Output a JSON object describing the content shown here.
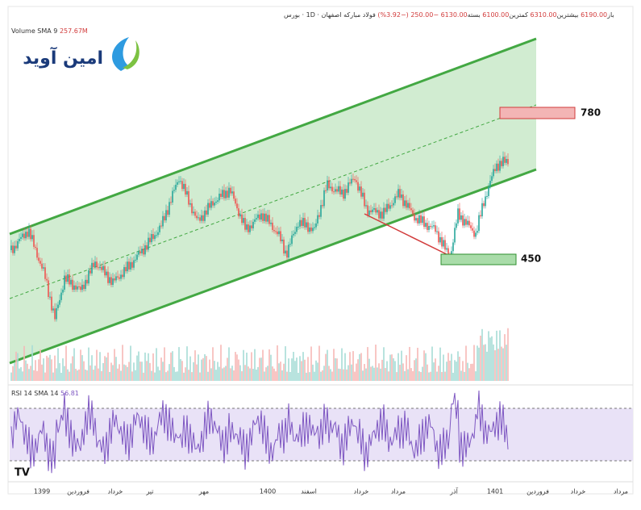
{
  "header": {
    "symbol": "فولاد مبارکه اصفهان · 1D · بورس",
    "open_label": "باز",
    "open": "6190.00",
    "high_label": "بیشترین",
    "high": "6310.00",
    "low_label": "کمترین",
    "low": "6100.00",
    "close_label": "بسته",
    "close": "6130.00",
    "change": "−250.00 (−3.92%)"
  },
  "volume": {
    "label": "Volume SMA 9",
    "value": "257.67M"
  },
  "logo": {
    "text": "امین آوید"
  },
  "annotations": {
    "target": "780",
    "support": "450"
  },
  "rsi": {
    "label": "RSI 14 SMA 14",
    "value": "56.81"
  },
  "x_axis": [
    "1399",
    "فروردین",
    "خرداد",
    "تیر",
    "مهر",
    "1400",
    "اسفند",
    "خرداد",
    "مرداد",
    "آذر",
    "1401",
    "فروردین",
    "خرداد",
    "مرداد"
  ]
}
